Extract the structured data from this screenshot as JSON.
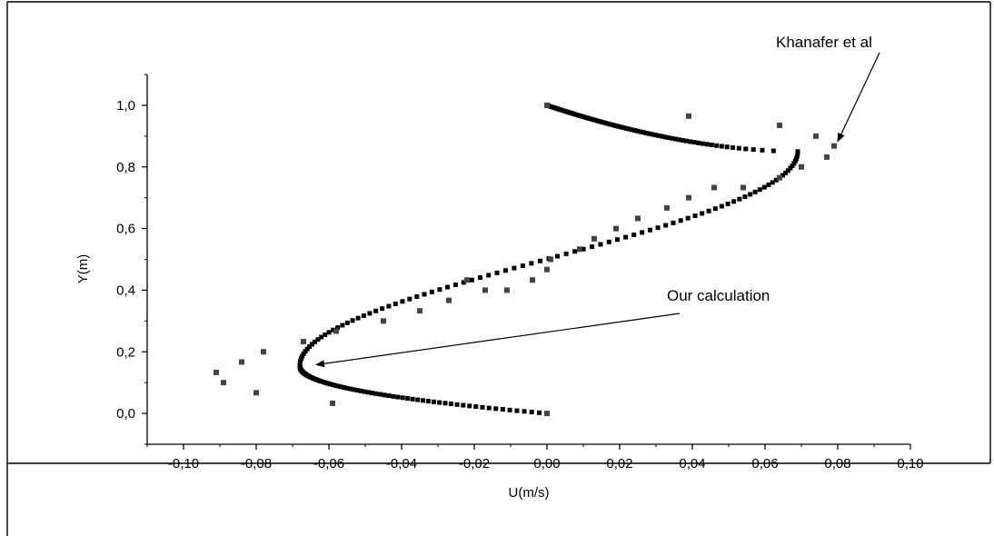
{
  "chart_data": {
    "type": "scatter",
    "title": "",
    "xlabel": "U(m/s)",
    "ylabel": "Y(m)",
    "xlim": [
      -0.11,
      0.1
    ],
    "ylim": [
      -0.1,
      1.1
    ],
    "xticks": [
      -0.1,
      -0.08,
      -0.06,
      -0.04,
      -0.02,
      0.0,
      0.02,
      0.04,
      0.06,
      0.08,
      0.1
    ],
    "xtick_labels": [
      "-0,10",
      "-0,08",
      "-0,06",
      "-0,04",
      "-0,02",
      "0,00",
      "0,02",
      "0,04",
      "0,06",
      "0,08",
      "0,10"
    ],
    "yticks": [
      0.0,
      0.2,
      0.4,
      0.6,
      0.8,
      1.0
    ],
    "ytick_labels": [
      "0,0",
      "0,2",
      "0,4",
      "0,6",
      "0,8",
      "1,0"
    ],
    "grid": false,
    "series": [
      {
        "name": "Our calculation",
        "color": "#000000",
        "profile": {
          "u_min": -0.068,
          "y_at_min": 0.155,
          "u_max": 0.069,
          "y_at_max": 0.85,
          "u_at_mid": 0.0,
          "y_mid": 0.49,
          "points": 230
        }
      },
      {
        "name": "Khanafer et al",
        "color": "#444444",
        "points": [
          [
            0.0,
            1.0
          ],
          [
            0.039,
            0.965
          ],
          [
            0.064,
            0.935
          ],
          [
            0.074,
            0.9
          ],
          [
            0.079,
            0.868
          ],
          [
            0.077,
            0.832
          ],
          [
            0.07,
            0.8
          ],
          [
            0.064,
            0.765
          ],
          [
            0.054,
            0.733
          ],
          [
            0.046,
            0.733
          ],
          [
            0.039,
            0.7
          ],
          [
            0.033,
            0.667
          ],
          [
            0.025,
            0.633
          ],
          [
            0.019,
            0.6
          ],
          [
            0.013,
            0.567
          ],
          [
            0.009,
            0.533
          ],
          [
            0.001,
            0.5
          ],
          [
            0.0,
            0.467
          ],
          [
            -0.004,
            0.433
          ],
          [
            -0.011,
            0.4
          ],
          [
            -0.017,
            0.4
          ],
          [
            -0.022,
            0.433
          ],
          [
            -0.027,
            0.367
          ],
          [
            -0.035,
            0.333
          ],
          [
            -0.045,
            0.3
          ],
          [
            -0.058,
            0.267
          ],
          [
            -0.067,
            0.233
          ],
          [
            -0.078,
            0.2
          ],
          [
            -0.084,
            0.167
          ],
          [
            -0.091,
            0.133
          ],
          [
            -0.089,
            0.1
          ],
          [
            -0.08,
            0.067
          ],
          [
            -0.059,
            0.033
          ],
          [
            0.0,
            0.0
          ]
        ]
      }
    ],
    "annotations": [
      {
        "text": "Khanafer et al",
        "target": [
          0.079,
          0.865
        ]
      },
      {
        "text": "Our calculation",
        "target": [
          -0.066,
          0.155
        ]
      }
    ]
  }
}
